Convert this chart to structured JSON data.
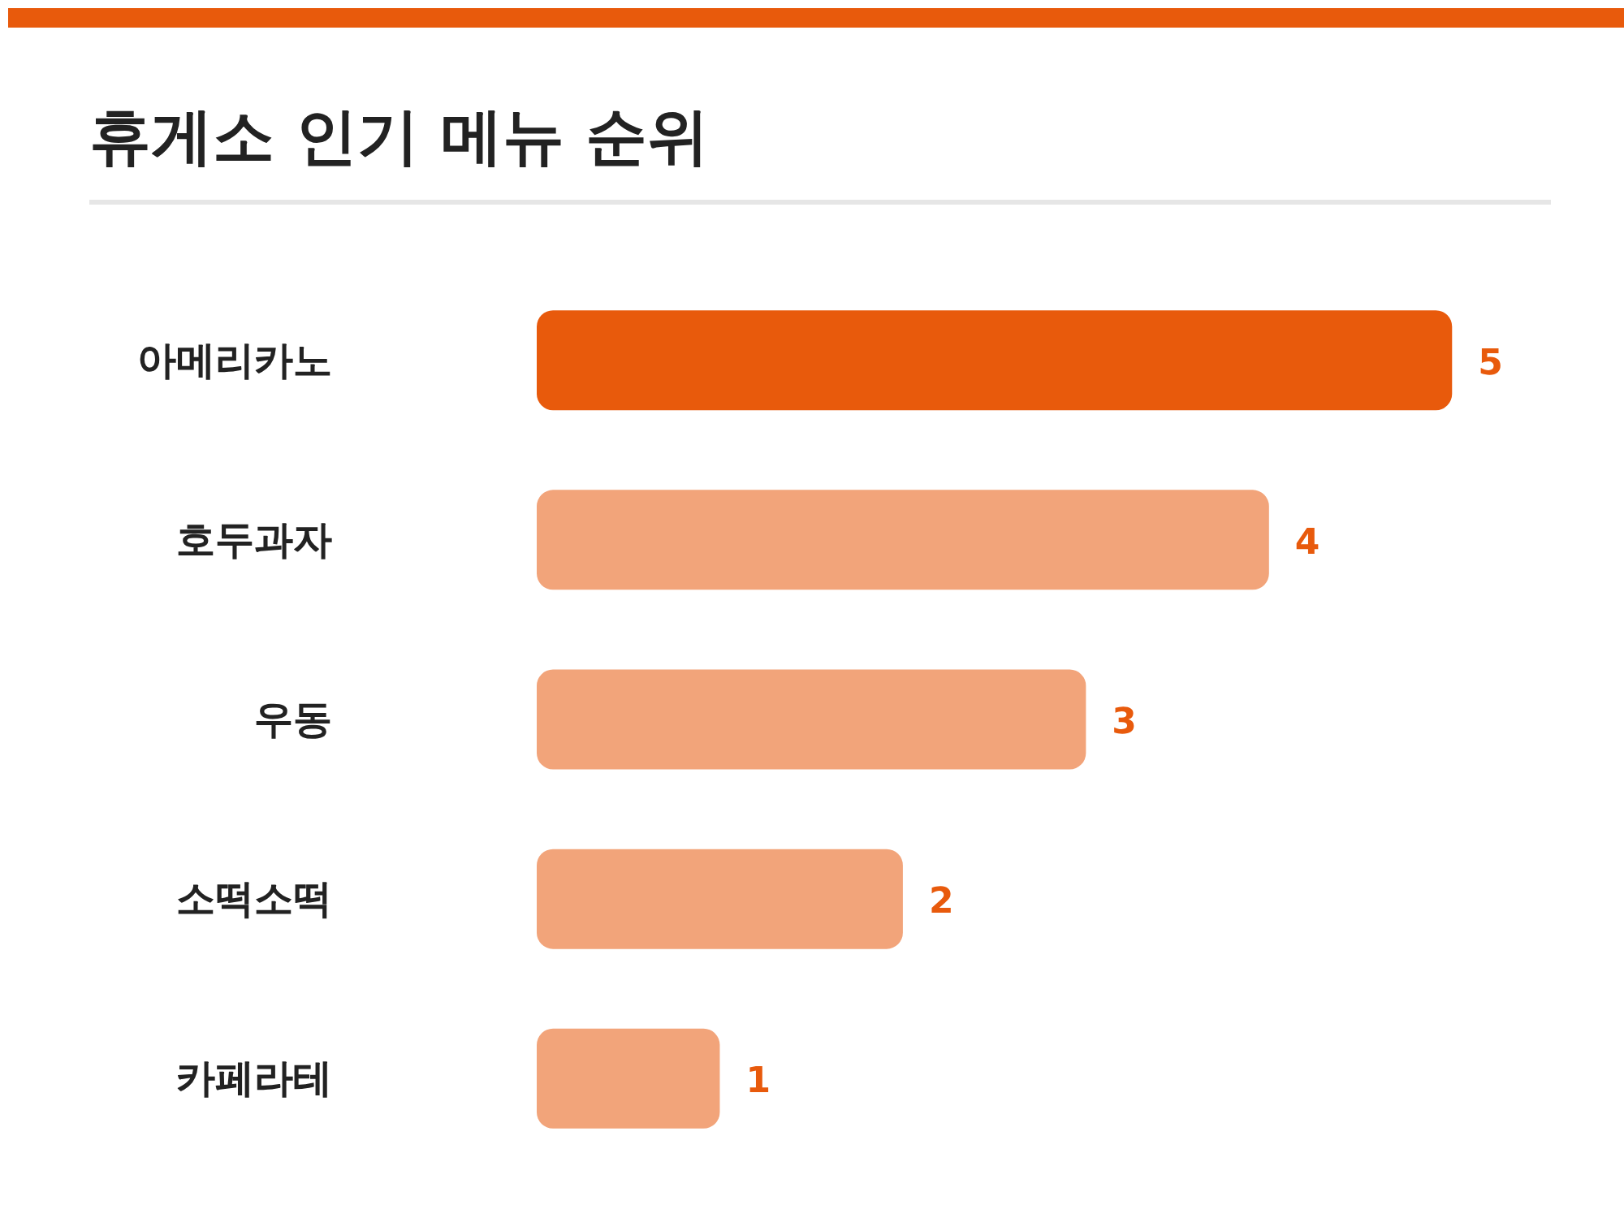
{
  "chart_data": {
    "type": "bar",
    "orientation": "horizontal",
    "title": "휴게소 인기 메뉴 순위",
    "categories": [
      "아메리카노",
      "호두과자",
      "우동",
      "소떡소떡",
      "카페라테"
    ],
    "values": [
      5,
      4,
      3,
      2,
      1
    ],
    "colors": [
      "#e85a0c",
      "#f2a47a",
      "#f2a47a",
      "#f2a47a",
      "#f2a47a"
    ],
    "data_labels": true
  }
}
